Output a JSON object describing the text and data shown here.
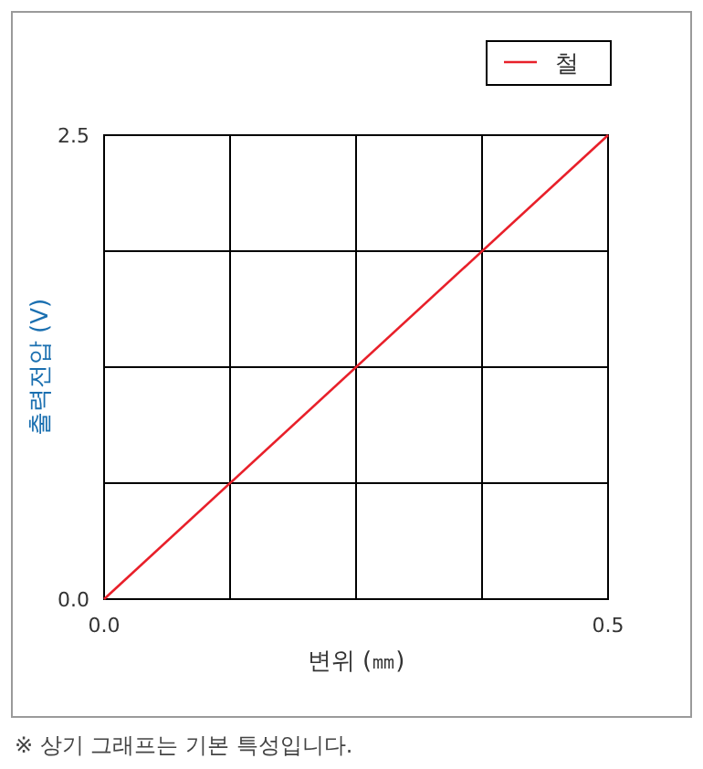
{
  "chart_data": {
    "type": "line",
    "xlabel": "변위 (㎜)",
    "ylabel": "출력전압 (V)",
    "x": [
      0,
      0.5
    ],
    "series": [
      {
        "name": "철",
        "color": "#e8202a",
        "values": [
          0,
          2.5
        ]
      }
    ],
    "xlim": [
      0,
      0.5
    ],
    "ylim": [
      0,
      2.5
    ],
    "xticks": [
      {
        "value": 0,
        "label": "0.0"
      },
      {
        "value": 0.125,
        "label": null
      },
      {
        "value": 0.25,
        "label": null
      },
      {
        "value": 0.375,
        "label": null
      },
      {
        "value": 0.5,
        "label": "0.5"
      }
    ],
    "yticks": [
      {
        "value": 0,
        "label": "0.0"
      },
      {
        "value": 0.625,
        "label": null
      },
      {
        "value": 1.25,
        "label": null
      },
      {
        "value": 1.875,
        "label": null
      },
      {
        "value": 2.5,
        "label": "2.5"
      }
    ],
    "grid": true,
    "legend": "top right",
    "marker": "none",
    "line_style": "solid",
    "annotations": [
      "※ 상기 그래프는 기본 특성입니다."
    ]
  }
}
